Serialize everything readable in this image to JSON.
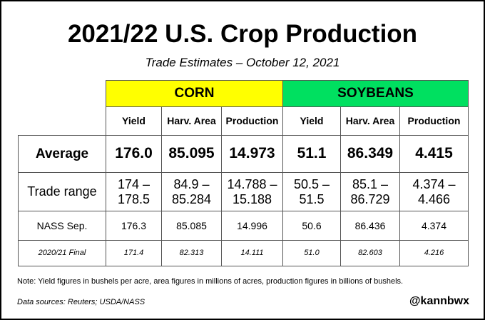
{
  "header": {
    "title": "2021/22 U.S. Crop Production",
    "subtitle": "Trade Estimates – October 12, 2021"
  },
  "table": {
    "groups": [
      "CORN",
      "SOYBEANS"
    ],
    "columns": [
      "Yield",
      "Harv. Area",
      "Production",
      "Yield",
      "Harv. Area",
      "Production"
    ],
    "rows": [
      [
        "Average",
        "176.0",
        "85.095",
        "14.973",
        "51.1",
        "86.349",
        "4.415"
      ],
      [
        "Trade range",
        "174 –\n178.5",
        "84.9 –\n85.284",
        "14.788 –\n15.188",
        "50.5 –\n51.5",
        "85.1 –\n86.729",
        "4.374 –\n4.466"
      ],
      [
        "NASS Sep.",
        "176.3",
        "85.085",
        "14.996",
        "50.6",
        "86.436",
        "4.374"
      ],
      [
        "2020/21 Final",
        "171.4",
        "82.313",
        "14.111",
        "51.0",
        "82.603",
        "4.216"
      ]
    ]
  },
  "note": "Note: Yield figures in bushels per acre, area figures in millions of acres, production figures in billions of bushels.",
  "source": "Data sources: Reuters; USDA/NASS",
  "handle": "@kannbwx"
}
